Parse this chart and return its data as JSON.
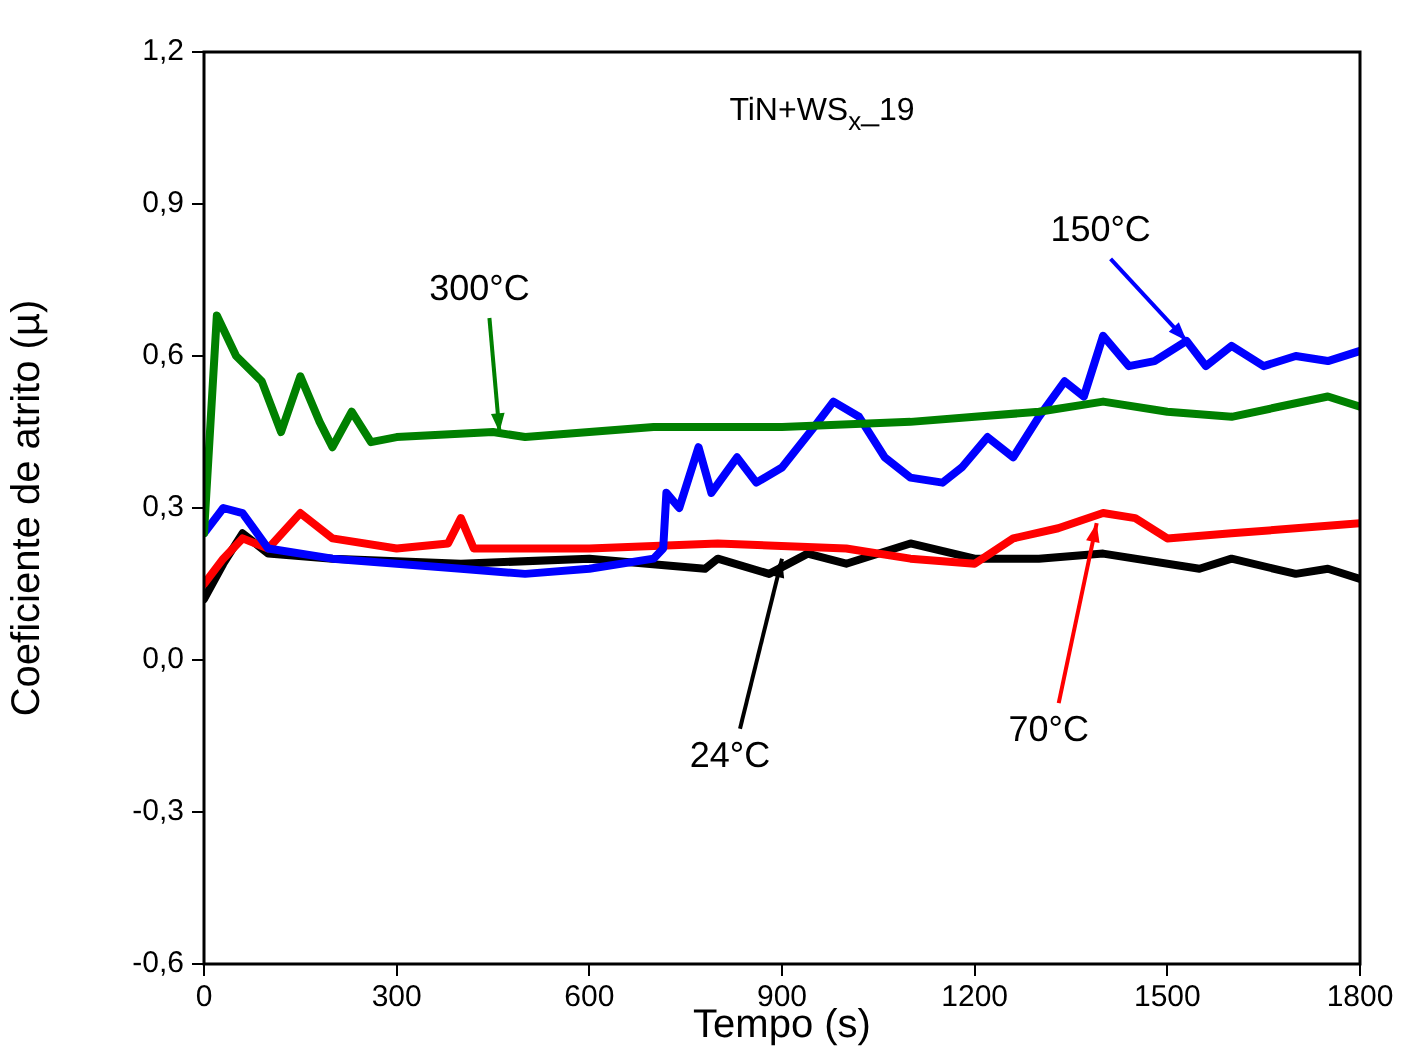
{
  "chart_data": {
    "type": "line",
    "title": "TiN+WS$_{x}$_19",
    "xlabel": "Tempo (s)",
    "ylabel": "Coeficiente de atrito (µ)",
    "xlim": [
      0,
      1800
    ],
    "xticks": [
      0,
      300,
      600,
      900,
      1200,
      1500,
      1800
    ],
    "ylim": [
      -0.6,
      1.2
    ],
    "yticks": [
      {
        "value": -0.6,
        "label": "-0,6"
      },
      {
        "value": -0.3,
        "label": "-0,3"
      },
      {
        "value": 0,
        "label": "0,0"
      },
      {
        "value": 0.3,
        "label": "0,3"
      },
      {
        "value": 0.6,
        "label": "0,6"
      },
      {
        "value": 0.9,
        "label": "0,9"
      },
      {
        "value": 1.2,
        "label": "1,2"
      }
    ],
    "grid": false,
    "legend": false,
    "marker": "none",
    "line_style": "solid",
    "series": [
      {
        "color": "#008000",
        "x": [
          0,
          20,
          50,
          90,
          120,
          150,
          180,
          200,
          230,
          260,
          300,
          450,
          500,
          700,
          900,
          1100,
          1200,
          1300,
          1400,
          1500,
          1600,
          1750,
          1800
        ],
        "values": [
          0.25,
          0.68,
          0.6,
          0.55,
          0.45,
          0.56,
          0.47,
          0.42,
          0.49,
          0.43,
          0.44,
          0.45,
          0.44,
          0.46,
          0.46,
          0.47,
          0.48,
          0.49,
          0.51,
          0.49,
          0.48,
          0.52,
          0.5
        ]
      },
      {
        "color": "#0000ff",
        "x": [
          0,
          30,
          60,
          100,
          200,
          400,
          500,
          600,
          700,
          715,
          720,
          740,
          770,
          790,
          830,
          860,
          900,
          950,
          980,
          1020,
          1060,
          1100,
          1150,
          1180,
          1220,
          1260,
          1300,
          1340,
          1370,
          1400,
          1440,
          1480,
          1530,
          1560,
          1600,
          1650,
          1700,
          1750,
          1800
        ],
        "values": [
          0.25,
          0.3,
          0.29,
          0.22,
          0.2,
          0.18,
          0.17,
          0.18,
          0.2,
          0.22,
          0.33,
          0.3,
          0.42,
          0.33,
          0.4,
          0.35,
          0.38,
          0.46,
          0.51,
          0.48,
          0.4,
          0.36,
          0.35,
          0.38,
          0.44,
          0.4,
          0.48,
          0.55,
          0.52,
          0.64,
          0.58,
          0.59,
          0.63,
          0.58,
          0.62,
          0.58,
          0.6,
          0.59,
          0.61
        ]
      },
      {
        "color": "#ff0000",
        "x": [
          0,
          30,
          60,
          100,
          150,
          200,
          300,
          380,
          400,
          420,
          600,
          800,
          1000,
          1100,
          1200,
          1260,
          1330,
          1400,
          1450,
          1500,
          1600,
          1700,
          1800
        ],
        "values": [
          0.15,
          0.2,
          0.24,
          0.22,
          0.29,
          0.24,
          0.22,
          0.23,
          0.28,
          0.22,
          0.22,
          0.23,
          0.22,
          0.2,
          0.19,
          0.24,
          0.26,
          0.29,
          0.28,
          0.24,
          0.25,
          0.26,
          0.27
        ]
      },
      {
        "color": "#000000",
        "x": [
          0,
          30,
          60,
          100,
          200,
          400,
          600,
          780,
          800,
          880,
          940,
          1000,
          1100,
          1200,
          1300,
          1400,
          1550,
          1600,
          1700,
          1750,
          1800
        ],
        "values": [
          0.12,
          0.19,
          0.25,
          0.21,
          0.2,
          0.19,
          0.2,
          0.18,
          0.2,
          0.17,
          0.21,
          0.19,
          0.23,
          0.2,
          0.2,
          0.21,
          0.18,
          0.2,
          0.17,
          0.18,
          0.16
        ]
      }
    ],
    "annotations": [
      {
        "text": "300°C",
        "x": 460,
        "y": 0.45
      },
      {
        "text": "150°C",
        "x": 1530,
        "y": 0.63
      },
      {
        "text": "70°C",
        "x": 1390,
        "y": 0.27
      },
      {
        "text": "24°C",
        "x": 900,
        "y": 0.2
      }
    ]
  }
}
